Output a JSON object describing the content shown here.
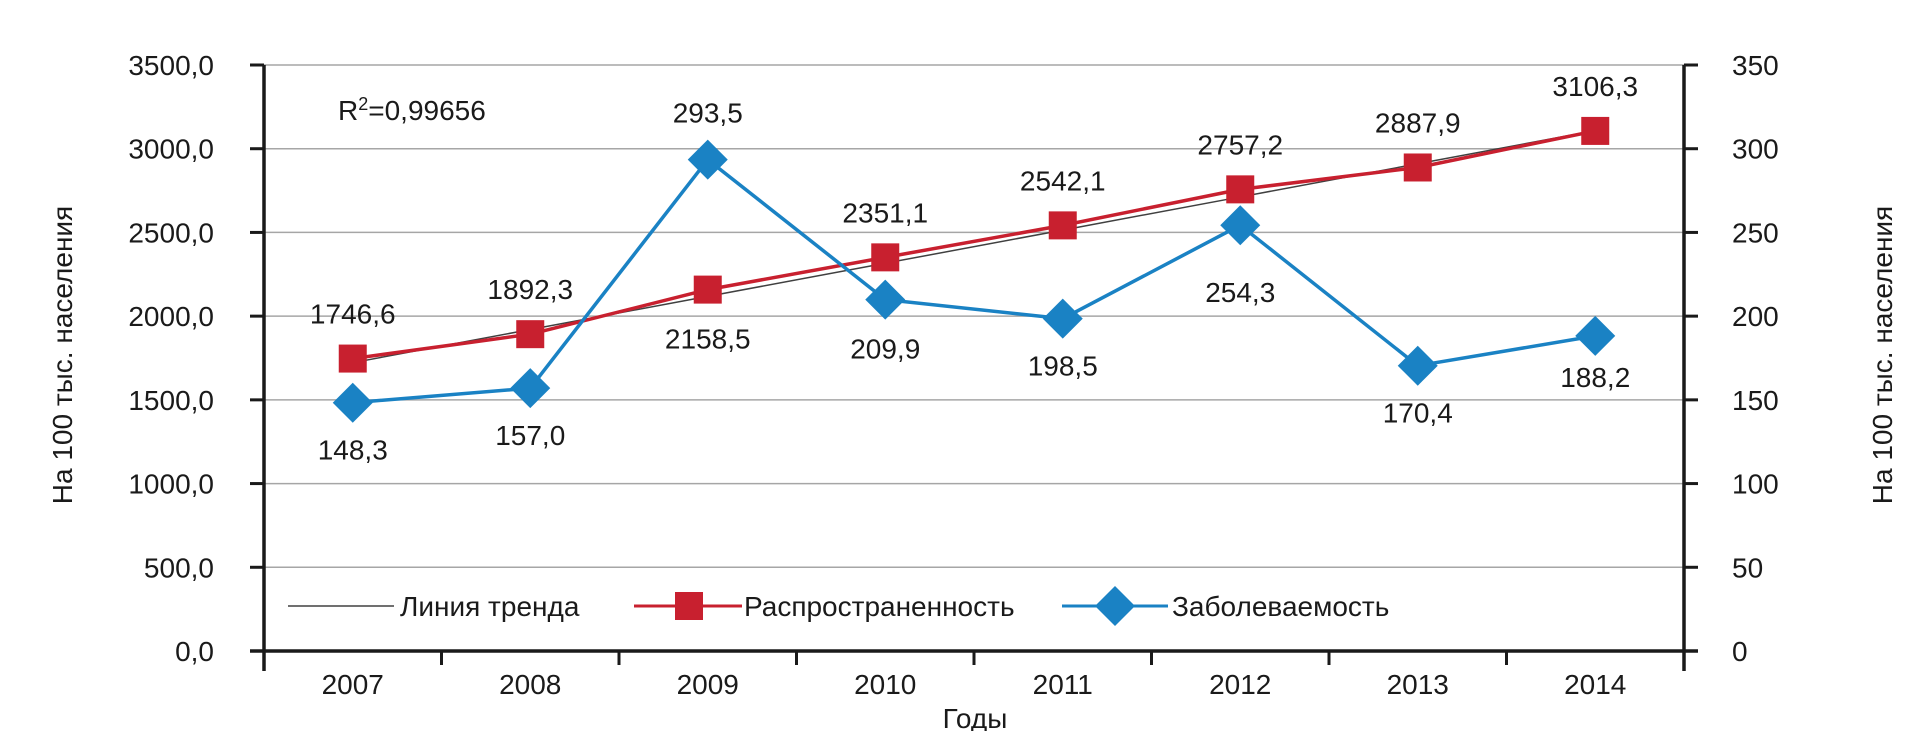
{
  "chart_data": {
    "type": "line",
    "categories": [
      "2007",
      "2008",
      "2009",
      "2010",
      "2011",
      "2012",
      "2013",
      "2014"
    ],
    "xlabel": "Годы",
    "ylabel_left": "На 100 тыс. населения",
    "ylabel_right": "На 100 тыс. населения",
    "ylim_left": [
      0,
      3500
    ],
    "ylim_right": [
      0,
      350
    ],
    "yticks_left": [
      "0,0",
      "500,0",
      "1000,0",
      "1500,0",
      "2000,0",
      "2500,0",
      "3000,0",
      "3500,0"
    ],
    "yticks_right": [
      "0",
      "50",
      "100",
      "150",
      "200",
      "250",
      "300",
      "350"
    ],
    "grid": true,
    "annotation": {
      "prefix": "R",
      "sup": "2",
      "suffix": "=0,99656"
    },
    "legend_placement": "bottom-inside",
    "series": [
      {
        "name": "Линия тренда",
        "axis": "left",
        "color": "#404040",
        "marker": "none",
        "values": [
          1722,
          1920,
          2118,
          2316,
          2514,
          2712,
          2910,
          3108
        ]
      },
      {
        "name": "Распространенность",
        "axis": "left",
        "color": "#c8202f",
        "marker": "square",
        "values": [
          1746.6,
          1892.3,
          2158.5,
          2351.1,
          2542.1,
          2757.2,
          2887.9,
          3106.3
        ],
        "labels": [
          "1746,6",
          "1892,3",
          "2158,5",
          "2351,1",
          "2542,1",
          "2757,2",
          "2887,9",
          "3106,3"
        ]
      },
      {
        "name": "Заболеваемость",
        "axis": "right",
        "color": "#1a82c4",
        "marker": "diamond",
        "values": [
          148.3,
          157.0,
          293.5,
          209.9,
          198.5,
          254.3,
          170.4,
          188.2
        ],
        "labels": [
          "148,3",
          "157,0",
          "293,5",
          "209,9",
          "198,5",
          "254,3",
          "170,4",
          "188,2"
        ]
      }
    ]
  }
}
